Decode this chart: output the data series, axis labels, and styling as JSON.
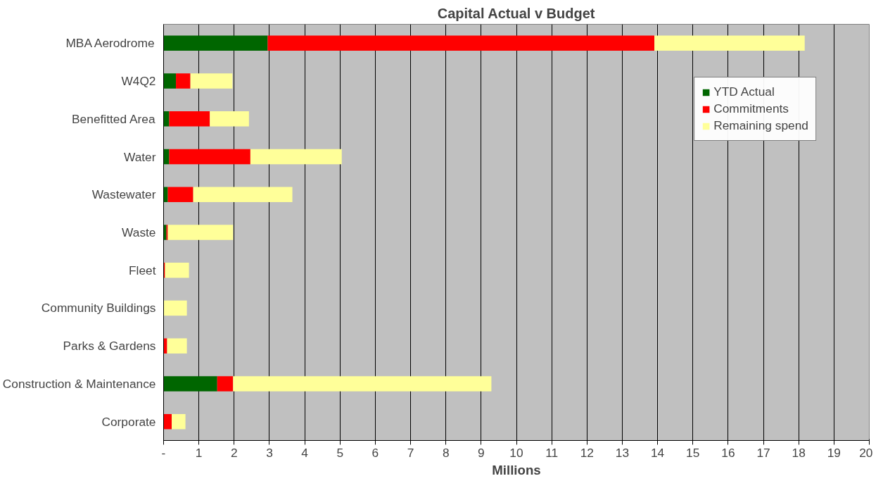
{
  "chart_data": {
    "type": "bar",
    "orientation": "horizontal",
    "stacked": true,
    "title": "Capital Actual v Budget",
    "xlabel": "Millions",
    "categories": [
      "MBA Aerodrome",
      "W4Q2",
      "Benefitted Area",
      "Water",
      "Wastewater",
      "Waste",
      "Fleet",
      "Community Buildings",
      "Parks & Gardens",
      "Construction & Maintenance",
      "Corporate"
    ],
    "series": [
      {
        "name": "YTD Actual",
        "color": "#006600",
        "values": [
          2.95,
          0.35,
          0.16,
          0.16,
          0.12,
          0.08,
          0,
          0,
          0,
          1.52,
          0
        ]
      },
      {
        "name": "Commitments",
        "color": "#ff0000",
        "values": [
          10.96,
          0.41,
          1.15,
          2.3,
          0.72,
          0.04,
          0.04,
          0,
          0.1,
          0.45,
          0.23
        ]
      },
      {
        "name": "Remaining spend",
        "color": "#ffff99",
        "values": [
          4.26,
          1.19,
          1.11,
          2.59,
          2.81,
          1.85,
          0.68,
          0.66,
          0.56,
          7.32,
          0.39
        ]
      }
    ],
    "xlim": [
      0,
      20
    ],
    "xticks": [
      {
        "value": 0,
        "label": "-"
      },
      1,
      2,
      3,
      4,
      5,
      6,
      7,
      8,
      9,
      10,
      11,
      12,
      13,
      14,
      15,
      16,
      17,
      18,
      19,
      20
    ],
    "grid": "x",
    "legend": "top right"
  }
}
